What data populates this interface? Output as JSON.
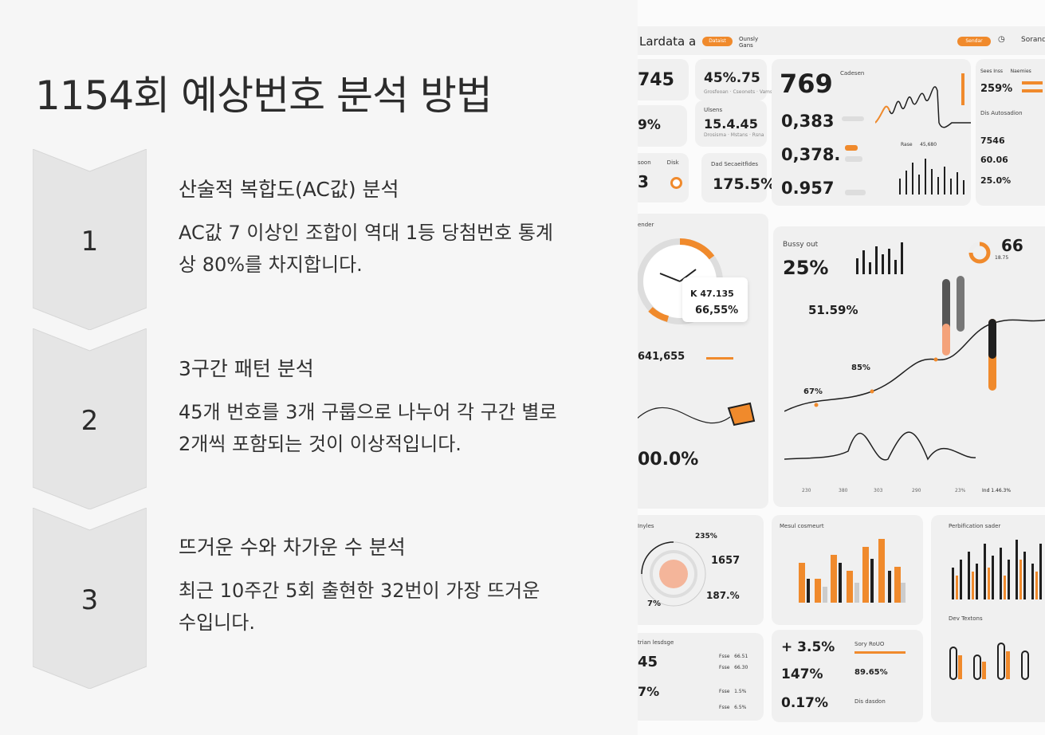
{
  "slide": {
    "title": "1154회 예상번호 분석 방법",
    "steps": [
      {
        "number": "1",
        "heading": "산술적 복합도(AC값) 분석",
        "body": "AC값 7 이상인 조합이 역대 1등 당첨번호 통계상 80%를 차지합니다."
      },
      {
        "number": "2",
        "heading": "3구간 패턴 분석",
        "body": "45개 번호를 3개 구룹으로 나누어 각 구간 별로 2개씩 포함되는 것이 이상적입니다."
      },
      {
        "number": "3",
        "heading": "뜨거운 수와 차가운 수 분석",
        "body": "최근 10주간 5회 출현한 32번이 가장 뜨거운 수입니다."
      }
    ]
  },
  "dashboard": {
    "brand": "Lardata a",
    "top_pill": "Dataist",
    "top_right_pill": "Sendar",
    "top_right_label": "Sorand",
    "stats": {
      "s745": "745",
      "s45_75": "45%.75",
      "s9pct": "9%",
      "s15_4_45": "15.4.45",
      "s3": "3",
      "s175_5": "175.5%",
      "s769": "769",
      "s0383": "0,383",
      "s0378": "0,378.",
      "s0957": "0.957",
      "s259": "259%",
      "s7546": "7546",
      "s60_06": "60.06",
      "s25_0": "25.0%",
      "s25pct": "25%",
      "s66": "66",
      "s18_75": "18.75",
      "s51_59": "51.59%",
      "s85pct": "85%",
      "s67pct": "67%",
      "k47": "K 47.135",
      "s66_55": "66,55%",
      "s641": "641,655",
      "s00pct": "00.0%",
      "s1657": "1657",
      "s187": "187.%",
      "s235": "235%",
      "s7pct_small": "7%",
      "s45_bot": "45",
      "s7pct": "7%",
      "p35": "+ 3.5%",
      "p147": "147%",
      "p017": "0.17%",
      "s89_65": "89.65%",
      "s1_46": "Ind 1.46.3%"
    },
    "labels": {
      "u_label": "Ulsens",
      "dad": "Dad Secaeitfides",
      "ender": "ender",
      "bussy": "Bussy out",
      "ds_auto": "Dis Autosadion",
      "mssl": "Mesul cosmeurt",
      "pert": "Perbification sader",
      "dev": "Dev Textons",
      "bdge": "trian lesdsge",
      "sor": "Sory RoUO",
      "dss": "Dis dasdon",
      "cdsert": "Cadesen",
      "rbyle": "Inyles"
    },
    "colors": {
      "accent": "#f08a2c",
      "dark": "#1f1f1f",
      "card": "#f0f0f0"
    },
    "chart_ticks": [
      "230",
      "380",
      "303",
      "290",
      "23%"
    ]
  }
}
